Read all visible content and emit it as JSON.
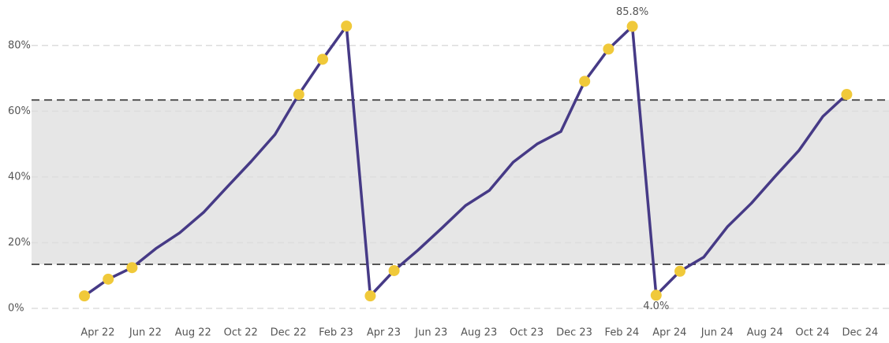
{
  "chart_data": {
    "type": "line",
    "categories": [
      "Apr 22",
      null,
      "Jun 22",
      null,
      "Aug 22",
      null,
      "Oct 22",
      null,
      "Dec 22",
      null,
      "Feb 23",
      null,
      "Apr 23",
      null,
      "Jun 23",
      null,
      "Aug 23",
      null,
      "Oct 23",
      null,
      "Dec 23",
      null,
      "Feb 24",
      null,
      "Apr 24",
      null,
      "Jun 24",
      null,
      "Aug 24",
      null,
      "Oct 24",
      null,
      "Dec 24"
    ],
    "series": [
      {
        "color": "#463a86",
        "marker_color": "#f0c93a",
        "values": [
          3.8,
          8.9,
          12.4,
          18.2,
          23.0,
          29.2,
          37.0,
          44.7,
          52.9,
          65.1,
          75.8,
          85.9,
          3.8,
          11.5,
          17.7,
          24.4,
          31.3,
          35.9,
          44.5,
          50.0,
          53.8,
          69.1,
          78.9,
          85.8,
          4.0,
          11.3,
          15.6,
          24.9,
          32.0,
          40.2,
          48.1,
          58.4,
          65.1
        ],
        "value_labels": [
          null,
          null,
          null,
          null,
          null,
          null,
          null,
          null,
          null,
          null,
          null,
          null,
          null,
          null,
          null,
          null,
          null,
          null,
          null,
          null,
          null,
          null,
          null,
          "85.8%",
          "4.0%",
          null,
          null,
          null,
          null,
          null,
          null,
          null,
          null
        ]
      }
    ],
    "band": [
      13.4,
      63.4
    ],
    "ylim": [
      0,
      90
    ],
    "yticks": [
      {
        "value": 0,
        "label": "0%"
      },
      {
        "value": 20,
        "label": "20%"
      },
      {
        "value": 40,
        "label": "40%"
      },
      {
        "value": 60,
        "label": "60%"
      },
      {
        "value": 80,
        "label": "80%"
      }
    ],
    "grid": true
  }
}
